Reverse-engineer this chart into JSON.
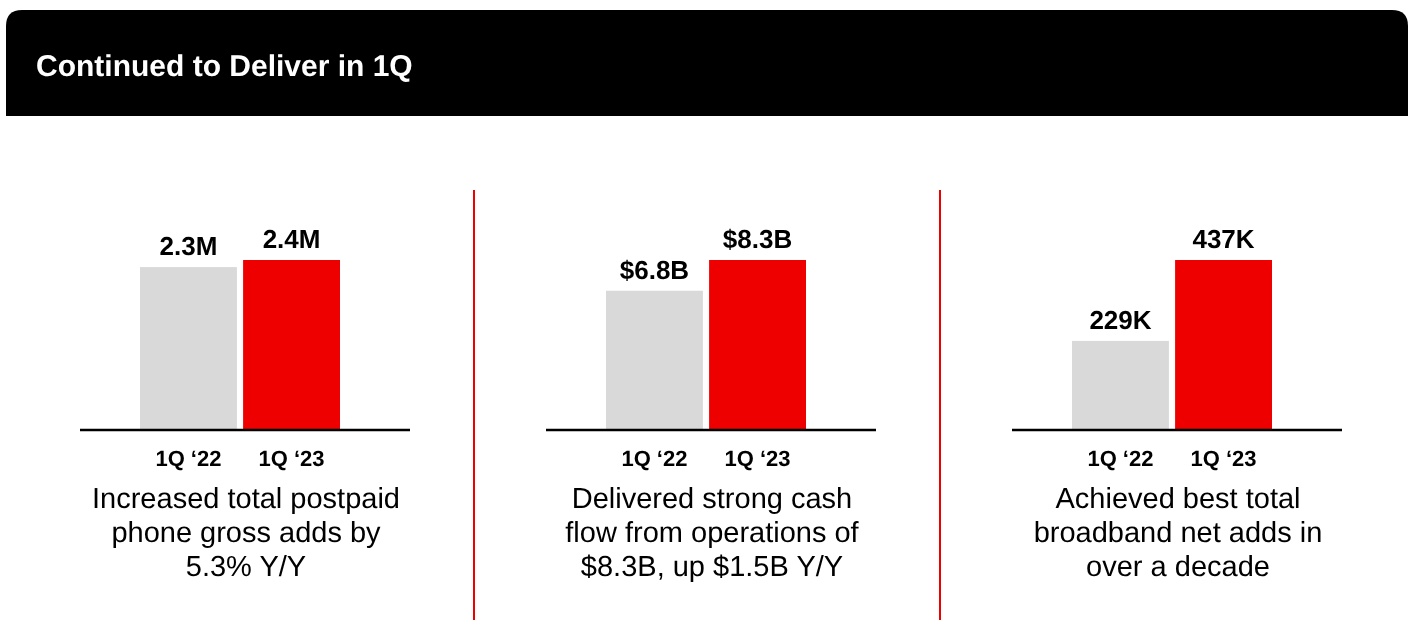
{
  "chart_data": [
    {
      "type": "bar",
      "title": "Continued to Deliver in 1Q",
      "categories": [
        "1Q ‘22",
        "1Q ‘23"
      ],
      "values": [
        2.3,
        2.4
      ],
      "colors": [
        "#d9d9d9",
        "#ee0000"
      ],
      "value_labels": [
        "2.3M",
        "2.4M"
      ],
      "tick_labels": "x",
      "annotations": [
        "Increased total postpaid phone gross adds by 5.3% Y/Y"
      ]
    },
    {
      "type": "bar",
      "categories": [
        "1Q ‘22",
        "1Q ‘23"
      ],
      "values": [
        6.8,
        8.3
      ],
      "colors": [
        "#d9d9d9",
        "#ee0000"
      ],
      "value_labels": [
        "$6.8B",
        "$8.3B"
      ],
      "tick_labels": "x",
      "annotations": [
        "Delivered strong cash flow from operations of $8.3B, up $1.5B Y/Y"
      ]
    },
    {
      "type": "bar",
      "categories": [
        "1Q ‘22",
        "1Q ‘23"
      ],
      "values": [
        229,
        437
      ],
      "colors": [
        "#d9d9d9",
        "#ee0000"
      ],
      "value_labels": [
        "229K",
        "437K"
      ],
      "tick_labels": "x",
      "annotations": [
        "Achieved best total broadband net adds in over a decade"
      ]
    }
  ]
}
